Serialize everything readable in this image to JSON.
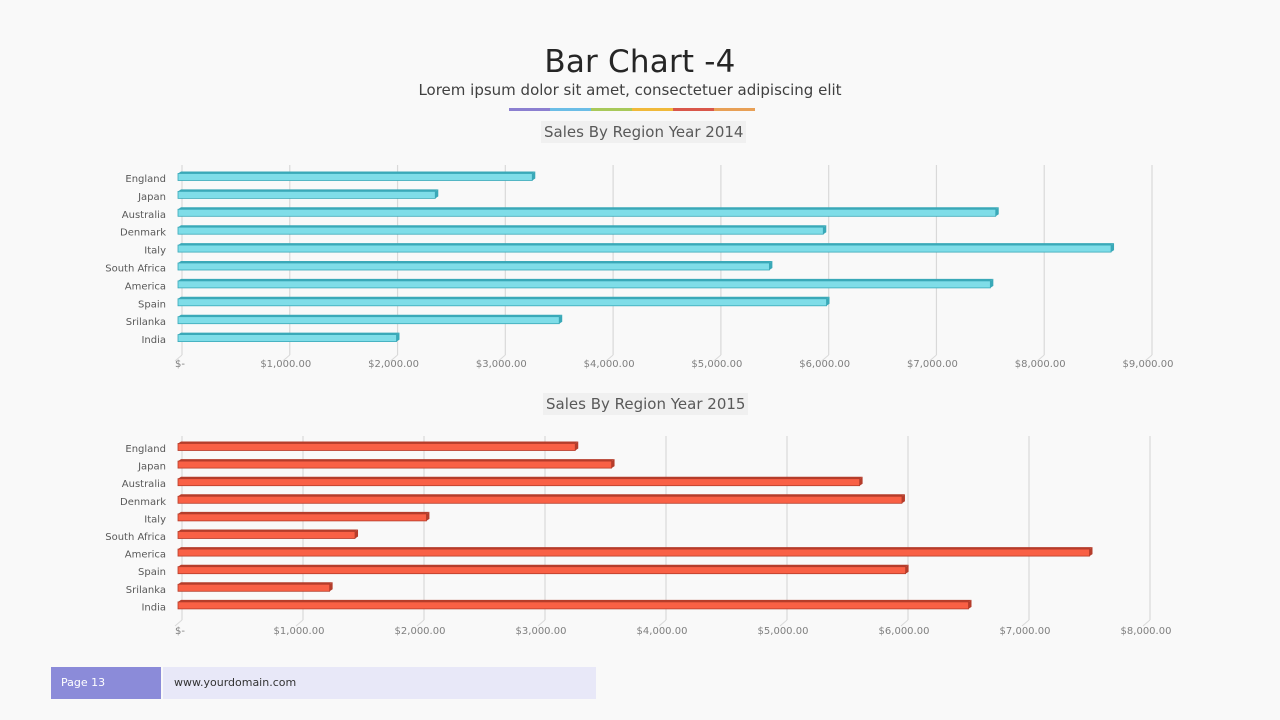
{
  "slide": {
    "title": "Bar Chart -4",
    "subtitle": "Lorem ipsum dolor sit amet, consectetuer adipiscing elit",
    "divider_colors": [
      "#8b7fd0",
      "#6bbde6",
      "#a8c95a",
      "#f0b93a",
      "#d9574a",
      "#e8a056"
    ]
  },
  "footer": {
    "page_label": "Page 13",
    "url": "www.yourdomain.com"
  },
  "chart_data": [
    {
      "type": "bar",
      "orientation": "horizontal",
      "title": "Sales By Region Year 2014",
      "categories": [
        "England",
        "Japan",
        "Australia",
        "Denmark",
        "Italy",
        "South Africa",
        "America",
        "Spain",
        "Srilanka",
        "India"
      ],
      "values": [
        3250,
        2350,
        7550,
        5950,
        8620,
        5450,
        7500,
        5980,
        3500,
        1990
      ],
      "xlim": [
        0,
        9000
      ],
      "tick_values": [
        0,
        1000,
        2000,
        3000,
        4000,
        5000,
        6000,
        7000,
        8000,
        9000
      ],
      "tick_labels": [
        "$-",
        "$1,000.00",
        "$2,000.00",
        "$3,000.00",
        "$4,000.00",
        "$5,000.00",
        "$6,000.00",
        "$7,000.00",
        "$8,000.00",
        "$9,000.00"
      ],
      "xlabel": "",
      "ylabel": "",
      "grid": true,
      "legend": "none",
      "color": "#7fdde8",
      "edge_color": "#3aa9b8"
    },
    {
      "type": "bar",
      "orientation": "horizontal",
      "title": "Sales By Region Year 2015",
      "categories": [
        "England",
        "Japan",
        "Australia",
        "Denmark",
        "Italy",
        "South Africa",
        "America",
        "Spain",
        "Srilanka",
        "India"
      ],
      "values": [
        3250,
        3550,
        5600,
        5950,
        2020,
        1430,
        7500,
        5980,
        1220,
        6500
      ],
      "xlim": [
        0,
        8000
      ],
      "tick_values": [
        0,
        1000,
        2000,
        3000,
        4000,
        5000,
        6000,
        7000,
        8000
      ],
      "tick_labels": [
        "$-",
        "$1,000.00",
        "$2,000.00",
        "$3,000.00",
        "$4,000.00",
        "$5,000.00",
        "$6,000.00",
        "$7,000.00",
        "$8,000.00"
      ],
      "xlabel": "",
      "ylabel": "",
      "grid": true,
      "legend": "none",
      "color": "#f96045",
      "edge_color": "#b53d2b"
    }
  ]
}
